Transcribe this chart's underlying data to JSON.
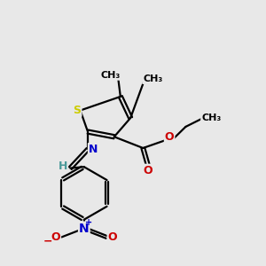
{
  "bg_color": "#e8e8e8",
  "bond_color": "#000000",
  "bond_width": 1.6,
  "S_color": "#cccc00",
  "N_color": "#0000cc",
  "O_color": "#cc0000",
  "H_color": "#4a9999",
  "figsize": [
    3.0,
    3.0
  ],
  "dpi": 100,
  "xlim": [
    0,
    10
  ],
  "ylim": [
    0,
    10
  ]
}
